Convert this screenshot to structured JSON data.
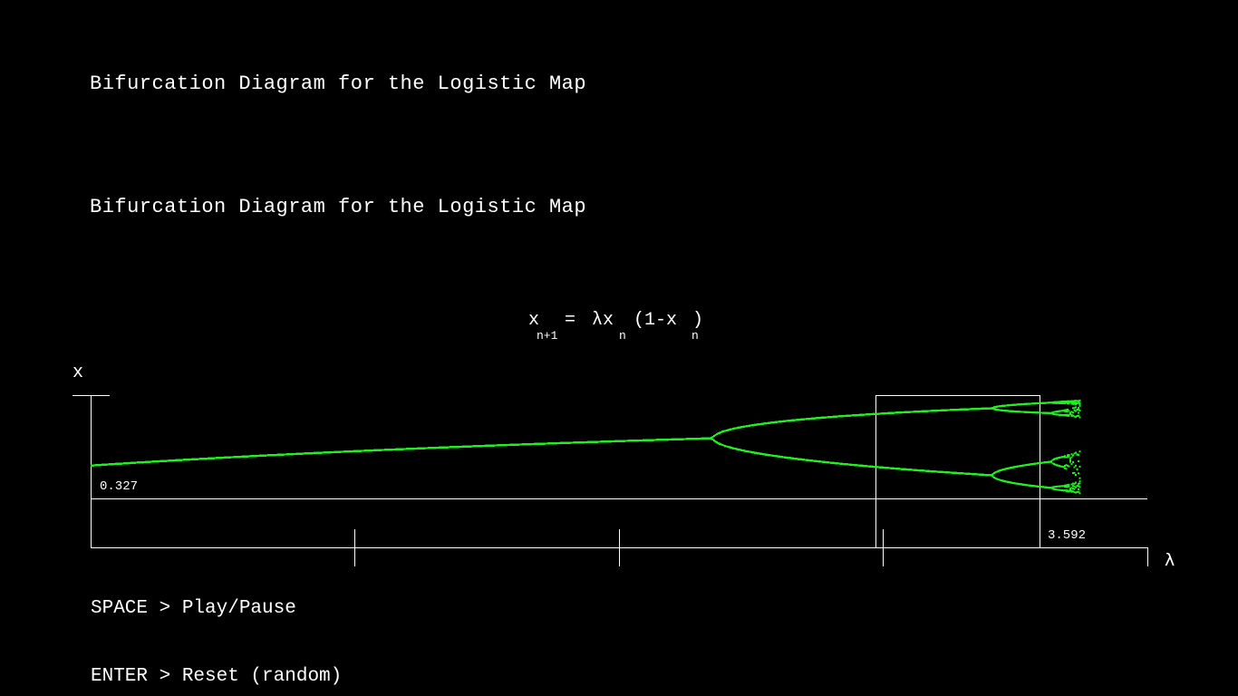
{
  "titles": {
    "top": "Bifurcation Diagram for the Logistic Map",
    "second": "Bifurcation Diagram for the Logistic Map"
  },
  "equation": {
    "x": "x",
    "sub_n1": "n+1",
    "equals": "=",
    "lambda_x": "λx",
    "sub_n_a": "n",
    "paren": "(1-x",
    "sub_n_b": "n",
    "close": ")"
  },
  "axes": {
    "y_label": "x",
    "x_label": "λ",
    "marker_x_value": "0.327",
    "marker_lambda_value": "3.592"
  },
  "controls": {
    "play_pause": "SPACE > Play/Pause",
    "reset": "ENTER > Reset (random)"
  },
  "colors": {
    "background": "#000000",
    "foreground": "#ffffff",
    "curve": "#22ee22"
  },
  "chart_data": {
    "type": "scatter",
    "title": "Bifurcation Diagram for the Logistic Map",
    "xlabel": "λ",
    "ylabel": "x",
    "xlim": [
      2.0,
      3.7
    ],
    "ylim": [
      0.0,
      0.93
    ],
    "zoom_box": {
      "lambda_min": 3.0,
      "lambda_max": 3.35,
      "x_min": 0.327,
      "x_max": 0.93
    },
    "annotations": [
      "0.327",
      "3.592"
    ],
    "visible_lambda_max": 3.592
  }
}
